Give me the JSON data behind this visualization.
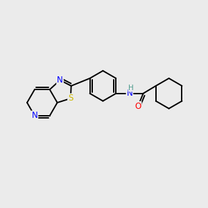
{
  "background_color": "#ebebeb",
  "bond_color": "#000000",
  "atom_colors": {
    "N": "#0000ff",
    "S": "#ccb800",
    "O": "#ff0000",
    "NH": "#4a9a8a",
    "C": "#000000"
  },
  "font_size": 8.5,
  "figsize": [
    3.0,
    3.0
  ],
  "dpi": 100
}
